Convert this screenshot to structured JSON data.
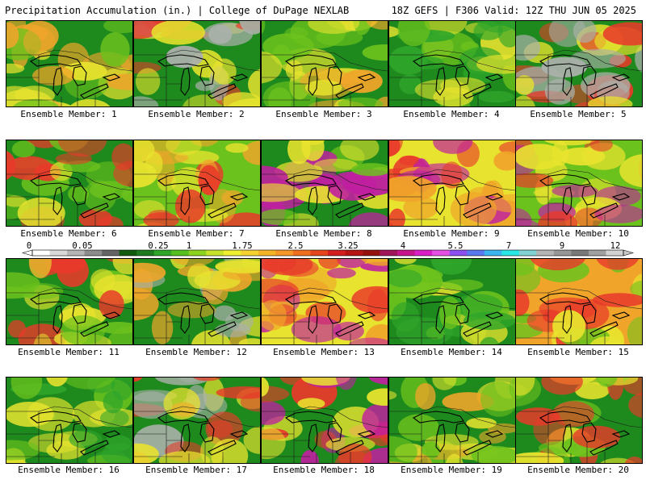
{
  "header": {
    "left_title": "Precipitation Accumulation (in.) | College of DuPage NEXLAB",
    "right_title": "18Z GEFS | F306 Valid: 12Z THU JUN 05 2025"
  },
  "member_prefix": "Ensemble Member:",
  "members": [
    {
      "number": "1",
      "palette": [
        "#1e8a1e",
        "#6cc21d",
        "#e8e32e",
        "#f0a52a"
      ]
    },
    {
      "number": "2",
      "palette": [
        "#1e8a1e",
        "#aab0aa",
        "#e8e32e",
        "#e83a2a"
      ]
    },
    {
      "number": "3",
      "palette": [
        "#1e8a1e",
        "#6cc21d",
        "#e8e32e",
        "#f0a52a"
      ]
    },
    {
      "number": "4",
      "palette": [
        "#1e8a1e",
        "#2fa52a",
        "#6cc21d",
        "#e8e32e"
      ]
    },
    {
      "number": "5",
      "palette": [
        "#1e8a1e",
        "#aab0aa",
        "#e8e32e",
        "#e83a2a"
      ]
    },
    {
      "number": "6",
      "palette": [
        "#1e8a1e",
        "#6cc21d",
        "#e8e32e",
        "#e83a2a"
      ]
    },
    {
      "number": "7",
      "palette": [
        "#6cc21d",
        "#e8e32e",
        "#f0a52a",
        "#e83a2a"
      ]
    },
    {
      "number": "8",
      "palette": [
        "#1e8a1e",
        "#6cc21d",
        "#e8e32e",
        "#c020a0"
      ]
    },
    {
      "number": "9",
      "palette": [
        "#e8e32e",
        "#f0a52a",
        "#e83a2a",
        "#c020a0"
      ]
    },
    {
      "number": "10",
      "palette": [
        "#6cc21d",
        "#e8e32e",
        "#e83a2a",
        "#c020a0"
      ]
    },
    {
      "number": "11",
      "palette": [
        "#1e8a1e",
        "#6cc21d",
        "#e8e32e",
        "#e83a2a"
      ]
    },
    {
      "number": "12",
      "palette": [
        "#1e8a1e",
        "#aab0aa",
        "#e8e32e",
        "#f0a52a"
      ]
    },
    {
      "number": "13",
      "palette": [
        "#e8e32e",
        "#f0a52a",
        "#e83a2a",
        "#c020a0"
      ]
    },
    {
      "number": "14",
      "palette": [
        "#1e8a1e",
        "#2fa52a",
        "#6cc21d",
        "#e8e32e"
      ]
    },
    {
      "number": "15",
      "palette": [
        "#f0a52a",
        "#e83a2a",
        "#e8e32e",
        "#6cc21d"
      ]
    },
    {
      "number": "16",
      "palette": [
        "#1e8a1e",
        "#2fa52a",
        "#6cc21d",
        "#e8e32e"
      ]
    },
    {
      "number": "17",
      "palette": [
        "#1e8a1e",
        "#aab0aa",
        "#e8e32e",
        "#e83a2a"
      ]
    },
    {
      "number": "18",
      "palette": [
        "#1e8a1e",
        "#e8e32e",
        "#e83a2a",
        "#c020a0"
      ]
    },
    {
      "number": "19",
      "palette": [
        "#1e8a1e",
        "#6cc21d",
        "#e8e32e",
        "#f0a52a"
      ]
    },
    {
      "number": "20",
      "palette": [
        "#1e8a1e",
        "#6cc21d",
        "#e8e32e",
        "#e83a2a"
      ]
    }
  ],
  "colorbar": {
    "labels": [
      "0",
      "0.05",
      "0.25",
      "1",
      "1.75",
      "2.5",
      "3.25",
      "4",
      "5.5",
      "7",
      "9",
      "12"
    ],
    "colors": [
      "#ffffff",
      "#d8d8d8",
      "#b4b4b4",
      "#8c8c8c",
      "#646464",
      "#0f5a0f",
      "#1e7a1e",
      "#2fa52a",
      "#55c01e",
      "#8cd21e",
      "#c8e12a",
      "#f0f032",
      "#f5d232",
      "#f5b428",
      "#f59628",
      "#f06e1e",
      "#e6461e",
      "#d21e1e",
      "#b41414",
      "#961010",
      "#a0145a",
      "#c8148c",
      "#dc1ec8",
      "#e650e6",
      "#8c50f0",
      "#5a78f0",
      "#3cb4f0",
      "#28e6e6",
      "#82d2d2",
      "#b4b4b4",
      "#969696",
      "#787878",
      "#a0a0a0",
      "#d2d2d2"
    ]
  }
}
